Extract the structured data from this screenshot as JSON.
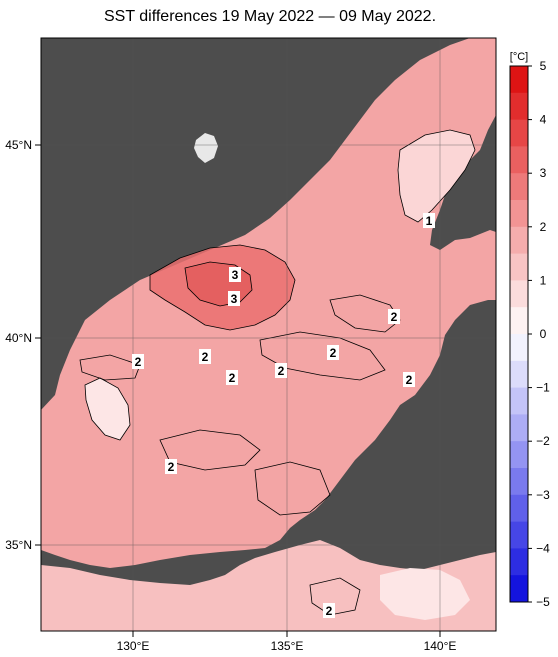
{
  "title": "SST differences 19 May 2022 — 09 May 2022.",
  "colorbar": {
    "unit": "[°C]",
    "min": -5,
    "max": 5,
    "tick_labels": [
      "5",
      "4",
      "3",
      "2",
      "1",
      "0",
      "−1",
      "−2",
      "−3",
      "−4",
      "−5"
    ],
    "colors_warm": [
      "#fdf2f2",
      "#fbdcdc",
      "#f8c4c4",
      "#f5adad",
      "#f29494",
      "#ee7a7a",
      "#ea6060",
      "#e64646",
      "#e22d2d",
      "#de1414"
    ],
    "colors_cool": [
      "#f2f2fd",
      "#dcdcfb",
      "#c4c4f8",
      "#adadf5",
      "#9494f2",
      "#7a7aee",
      "#6060ea",
      "#4646e6",
      "#2d2de2",
      "#1414de"
    ]
  },
  "axes": {
    "lon_labels": [
      "130°E",
      "135°E",
      "140°E"
    ],
    "lat_labels": [
      "45°N",
      "40°N",
      "35°N"
    ]
  },
  "contour_labels": [
    "1",
    "3",
    "3",
    "2",
    "2",
    "2",
    "2",
    "2",
    "2",
    "2",
    "2",
    "2"
  ],
  "colors": {
    "land": "#4d4d4d",
    "sea_base": "#f3a5a5",
    "sea_warm": "#ea7070",
    "sea_light": "#fbd6d6"
  }
}
